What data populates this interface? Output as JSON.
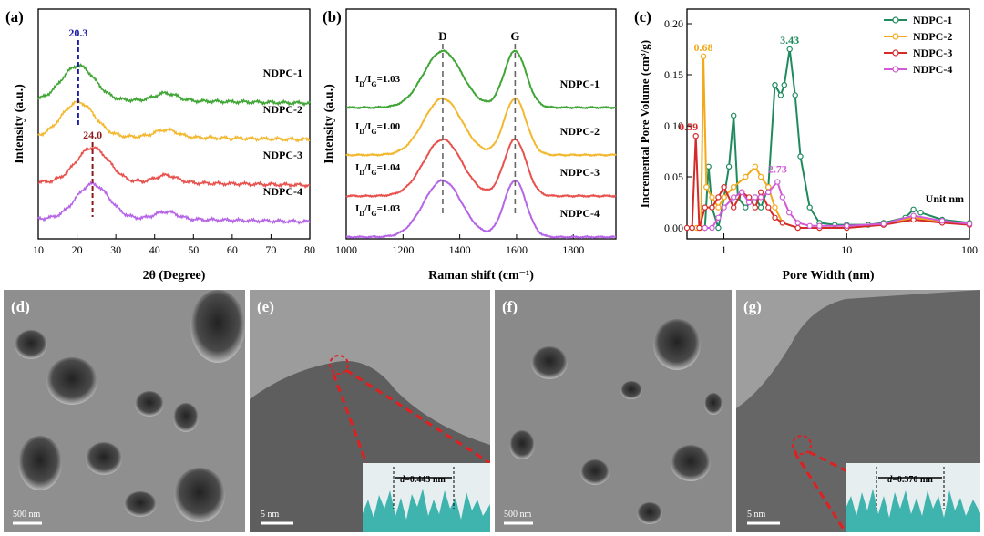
{
  "panels": {
    "a": "(a)",
    "b": "(b)",
    "c": "(c)",
    "d": "(d)",
    "e": "(e)",
    "f": "(f)",
    "g": "(g)"
  },
  "chart_data": [
    {
      "type": "line",
      "panel": "(a)",
      "xlabel": "2θ (Degree)",
      "ylabel": "Intensity (a.u.)",
      "xlim": [
        10,
        80
      ],
      "xticks": [
        "10",
        "20",
        "30",
        "40",
        "50",
        "60",
        "70",
        "80"
      ],
      "series": [
        {
          "name": "NDPC-1",
          "color": "#3fa535",
          "peak": 20.3
        },
        {
          "name": "NDPC-2",
          "color": "#f2b830",
          "peak": 20.3
        },
        {
          "name": "NDPC-3",
          "color": "#e8524e",
          "peak": 24.0
        },
        {
          "name": "NDPC-4",
          "color": "#b565e6",
          "peak": 24.0
        }
      ],
      "annotations": [
        {
          "text": "20.3",
          "x": 20.3,
          "color": "#1a1aa8"
        },
        {
          "text": "24.0",
          "x": 24.0,
          "color": "#8b1a1a"
        }
      ]
    },
    {
      "type": "line",
      "panel": "(b)",
      "xlabel": "Raman shift (cm⁻¹)",
      "ylabel": "Intensity (a.u.)",
      "xlim": [
        1000,
        1950
      ],
      "xticks": [
        "1000",
        "1200",
        "1400",
        "1600",
        "1800"
      ],
      "band_labels": [
        {
          "text": "D",
          "x": 1340
        },
        {
          "text": "G",
          "x": 1595
        }
      ],
      "series": [
        {
          "name": "NDPC-1",
          "color": "#3fa535",
          "ratio": "1.03"
        },
        {
          "name": "NDPC-2",
          "color": "#f2b830",
          "ratio": "1.00"
        },
        {
          "name": "NDPC-3",
          "color": "#e8524e",
          "ratio": "1.04"
        },
        {
          "name": "NDPC-4",
          "color": "#b565e6",
          "ratio": "1.03"
        }
      ]
    },
    {
      "type": "line",
      "panel": "(c)",
      "xlabel": "Pore Width (nm)",
      "ylabel": "Incremental Pore Volume (cm³/g)",
      "xscale": "log",
      "xlim": [
        0.5,
        100
      ],
      "ylim": [
        0,
        0.2
      ],
      "xticks": [
        "1",
        "10",
        "100"
      ],
      "yticks": [
        "0.00",
        "0.05",
        "0.10",
        "0.15",
        "0.20"
      ],
      "legend_position": "top-right",
      "unit_note": "Unit nm",
      "series": [
        {
          "name": "NDPC-1",
          "color": "#1e8a5e",
          "peak_x": 3.43,
          "label": "3.43",
          "x": [
            0.7,
            0.75,
            0.8,
            0.9,
            1.0,
            1.1,
            1.2,
            1.3,
            1.5,
            1.8,
            2.0,
            2.3,
            2.6,
            2.9,
            3.1,
            3.43,
            3.8,
            4.2,
            5,
            6,
            8,
            10,
            15,
            20,
            30,
            35,
            40,
            60,
            100
          ],
          "y": [
            0,
            0.06,
            0.02,
            0,
            0.03,
            0.06,
            0.11,
            0.03,
            0.02,
            0.03,
            0.02,
            0.04,
            0.14,
            0.13,
            0.14,
            0.175,
            0.13,
            0.07,
            0.02,
            0.005,
            0.003,
            0.003,
            0.003,
            0.005,
            0.01,
            0.018,
            0.015,
            0.008,
            0.005
          ]
        },
        {
          "name": "NDPC-2",
          "color": "#f2a91b",
          "peak_x": 0.68,
          "label": "0.68",
          "x": [
            0.55,
            0.6,
            0.65,
            0.68,
            0.72,
            0.8,
            0.9,
            1.0,
            1.2,
            1.5,
            1.8,
            2.0,
            2.3,
            2.6,
            3,
            4,
            6,
            10,
            20,
            35,
            60,
            100
          ],
          "y": [
            0,
            0,
            0,
            0.168,
            0.04,
            0.03,
            0.02,
            0.03,
            0.04,
            0.05,
            0.06,
            0.05,
            0.04,
            0.02,
            0.005,
            0,
            0,
            0,
            0.003,
            0.01,
            0.006,
            0.004
          ]
        },
        {
          "name": "NDPC-3",
          "color": "#d42a2a",
          "peak_x": 0.59,
          "label": "0.59",
          "x": [
            0.5,
            0.55,
            0.59,
            0.63,
            0.7,
            0.8,
            0.9,
            1.0,
            1.2,
            1.4,
            1.6,
            1.8,
            2.0,
            2.3,
            2.6,
            3,
            4,
            6,
            10,
            20,
            35,
            60,
            100
          ],
          "y": [
            0,
            0,
            0.09,
            0,
            0.02,
            0.02,
            0.03,
            0.04,
            0.02,
            0.035,
            0.03,
            0.02,
            0.035,
            0.02,
            0.01,
            0.005,
            0,
            0,
            0,
            0.003,
            0.008,
            0.005,
            0.003
          ]
        },
        {
          "name": "NDPC-4",
          "color": "#d05ad6",
          "peak_x": 2.73,
          "label": "2.73",
          "x": [
            0.7,
            0.8,
            0.9,
            1.0,
            1.2,
            1.4,
            1.6,
            1.8,
            2.0,
            2.3,
            2.73,
            3.0,
            3.4,
            4,
            5,
            6,
            10,
            20,
            35,
            60,
            100
          ],
          "y": [
            0,
            0,
            0.01,
            0.02,
            0.03,
            0.035,
            0.025,
            0.03,
            0.03,
            0.035,
            0.045,
            0.03,
            0.015,
            0.005,
            0.002,
            0.002,
            0.002,
            0.004,
            0.012,
            0.007,
            0.004
          ]
        }
      ]
    }
  ],
  "images": [
    {
      "panel": "(d)",
      "scale": "500 nm",
      "kind": "sem"
    },
    {
      "panel": "(e)",
      "scale": "5 nm",
      "kind": "tem",
      "d_spacing": "0.443 nm"
    },
    {
      "panel": "(f)",
      "scale": "500 nm",
      "kind": "sem"
    },
    {
      "panel": "(g)",
      "scale": "5 nm",
      "kind": "tem",
      "d_spacing": "0.370 nm"
    }
  ]
}
